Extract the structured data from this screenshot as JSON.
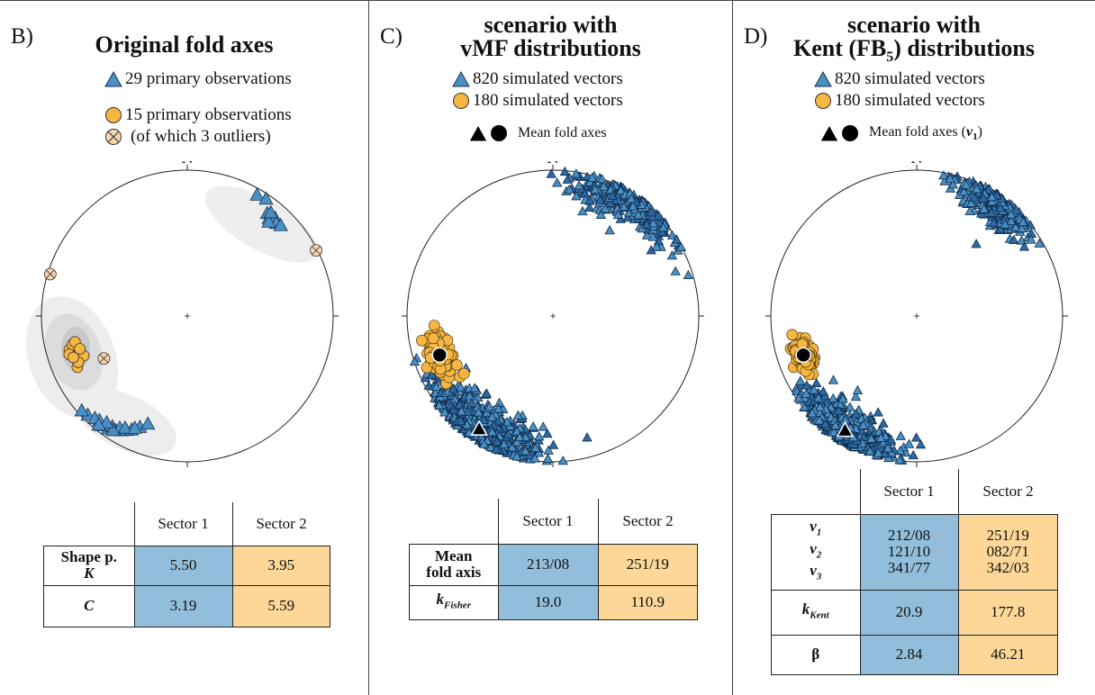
{
  "colors": {
    "blue_fill": "#4a90c4",
    "blue_cell": "#93bedb",
    "orange_fill": "#f7b542",
    "orange_cell": "#fcd798",
    "dark_blue": "#1e4f85"
  },
  "panels": {
    "b": {
      "letter": "B)",
      "title": "Original fold axes",
      "legend": {
        "blue": "29 primary observations",
        "orange": "15 primary observations",
        "outlier": "(of which 3 outliers)"
      },
      "north": "N",
      "table": {
        "col1": "Sector 1",
        "col2": "Sector 2",
        "row1_label_a": "Shape p.",
        "row1_label_b": "K",
        "row1_v1": "5.50",
        "row1_v2": "3.95",
        "row2_label": "C",
        "row2_v1": "3.19",
        "row2_v2": "5.59"
      }
    },
    "c": {
      "letter": "C)",
      "title_line1": "scenario with",
      "title_line2": "vMF distributions",
      "legend": {
        "blue": "820 simulated vectors",
        "orange": "180 simulated vectors",
        "mean": "Mean fold axes"
      },
      "north": "N",
      "table": {
        "col1": "Sector 1",
        "col2": "Sector 2",
        "row1_label_a": "Mean",
        "row1_label_b": "fold axis",
        "row1_v1": "213/08",
        "row1_v2": "251/19",
        "row2_label": "k",
        "row2_sub": "Fisher",
        "row2_v1": "19.0",
        "row2_v2": "110.9"
      }
    },
    "d": {
      "letter": "D)",
      "title_line1": "scenario with",
      "title_line2_a": "Kent (FB",
      "title_line2_sub": "5",
      "title_line2_b": ") distributions",
      "legend": {
        "blue": "820 simulated vectors",
        "orange": "180 simulated vectors",
        "mean_a": "Mean fold axes (",
        "mean_v": "v",
        "mean_sub": "1",
        "mean_b": ")"
      },
      "north": "N",
      "table": {
        "col1": "Sector 1",
        "col2": "Sector 2",
        "v_label": "v",
        "v_sub1": "1",
        "v_sub2": "2",
        "v_sub3": "3",
        "s1_v1": "212/08",
        "s1_v2": "121/10",
        "s1_v3": "341/77",
        "s2_v1": "251/19",
        "s2_v2": "082/71",
        "s2_v3": "342/03",
        "k_label": "k",
        "k_sub": "Kent",
        "k_v1": "20.9",
        "k_v2": "177.8",
        "beta_label": "β",
        "beta_v1": "2.84",
        "beta_v2": "46.21"
      }
    }
  },
  "chart_data": [
    {
      "type": "scatter",
      "panel": "B",
      "title": "Original fold axes",
      "projection": "equal-area stereonet, lower hemisphere",
      "series": [
        {
          "name": "29 primary observations",
          "marker": "triangle",
          "trend_plunge": [
            [
              212,
              8
            ],
            [
              210,
              10
            ],
            [
              215,
              6
            ],
            [
              208,
              12
            ],
            [
              218,
              5
            ],
            [
              214,
              9
            ],
            [
              206,
              14
            ],
            [
              220,
              7
            ],
            [
              203,
              18
            ],
            [
              225,
              4
            ],
            [
              211,
              11
            ],
            [
              216,
              8
            ],
            [
              228,
              3
            ],
            [
              200,
              22
            ],
            [
              222,
              6
            ],
            [
              213,
              7
            ],
            [
              209,
              13
            ],
            [
              217,
              9
            ],
            [
              205,
              16
            ],
            [
              219,
              4
            ],
            [
              30,
              5
            ],
            [
              34,
              4
            ],
            [
              38,
              12
            ],
            [
              40,
              14
            ],
            [
              42,
              11
            ],
            [
              44,
              13
            ],
            [
              46,
              12
            ],
            [
              41,
              16
            ],
            [
              39,
              10
            ]
          ]
        },
        {
          "name": "15 primary observations",
          "marker": "circle",
          "trend_plunge": [
            [
              251,
              19
            ],
            [
              248,
              21
            ],
            [
              254,
              17
            ],
            [
              250,
              23
            ],
            [
              256,
              20
            ],
            [
              245,
              18
            ],
            [
              252,
              16
            ],
            [
              249,
              25
            ],
            [
              257,
              22
            ],
            [
              247,
              20
            ],
            [
              253,
              24
            ],
            [
              250,
              18
            ]
          ]
        },
        {
          "name": "(of which 3 outliers)",
          "marker": "circle-x",
          "trend_plunge": [
            [
              63,
              1
            ],
            [
              287,
              2
            ],
            [
              243,
              36
            ]
          ]
        }
      ]
    },
    {
      "type": "scatter",
      "panel": "C",
      "title": "scenario with vMF distributions",
      "projection": "equal-area stereonet, lower hemisphere",
      "series": [
        {
          "name": "820 simulated vectors",
          "marker": "triangle",
          "count": 820
        },
        {
          "name": "180 simulated vectors",
          "marker": "circle",
          "count": 180
        },
        {
          "name": "Mean fold axes",
          "marker": "triangle-and-circle-black",
          "trend_plunge": [
            [
              213,
              8
            ],
            [
              251,
              19
            ]
          ]
        }
      ]
    },
    {
      "type": "scatter",
      "panel": "D",
      "title": "scenario with Kent (FB5) distributions",
      "projection": "equal-area stereonet, lower hemisphere",
      "series": [
        {
          "name": "820 simulated vectors",
          "marker": "triangle",
          "count": 820
        },
        {
          "name": "180 simulated vectors",
          "marker": "circle",
          "count": 180
        },
        {
          "name": "Mean fold axes (v1)",
          "marker": "triangle-and-circle-black",
          "trend_plunge": [
            [
              212,
              8
            ],
            [
              251,
              19
            ]
          ]
        }
      ]
    }
  ]
}
